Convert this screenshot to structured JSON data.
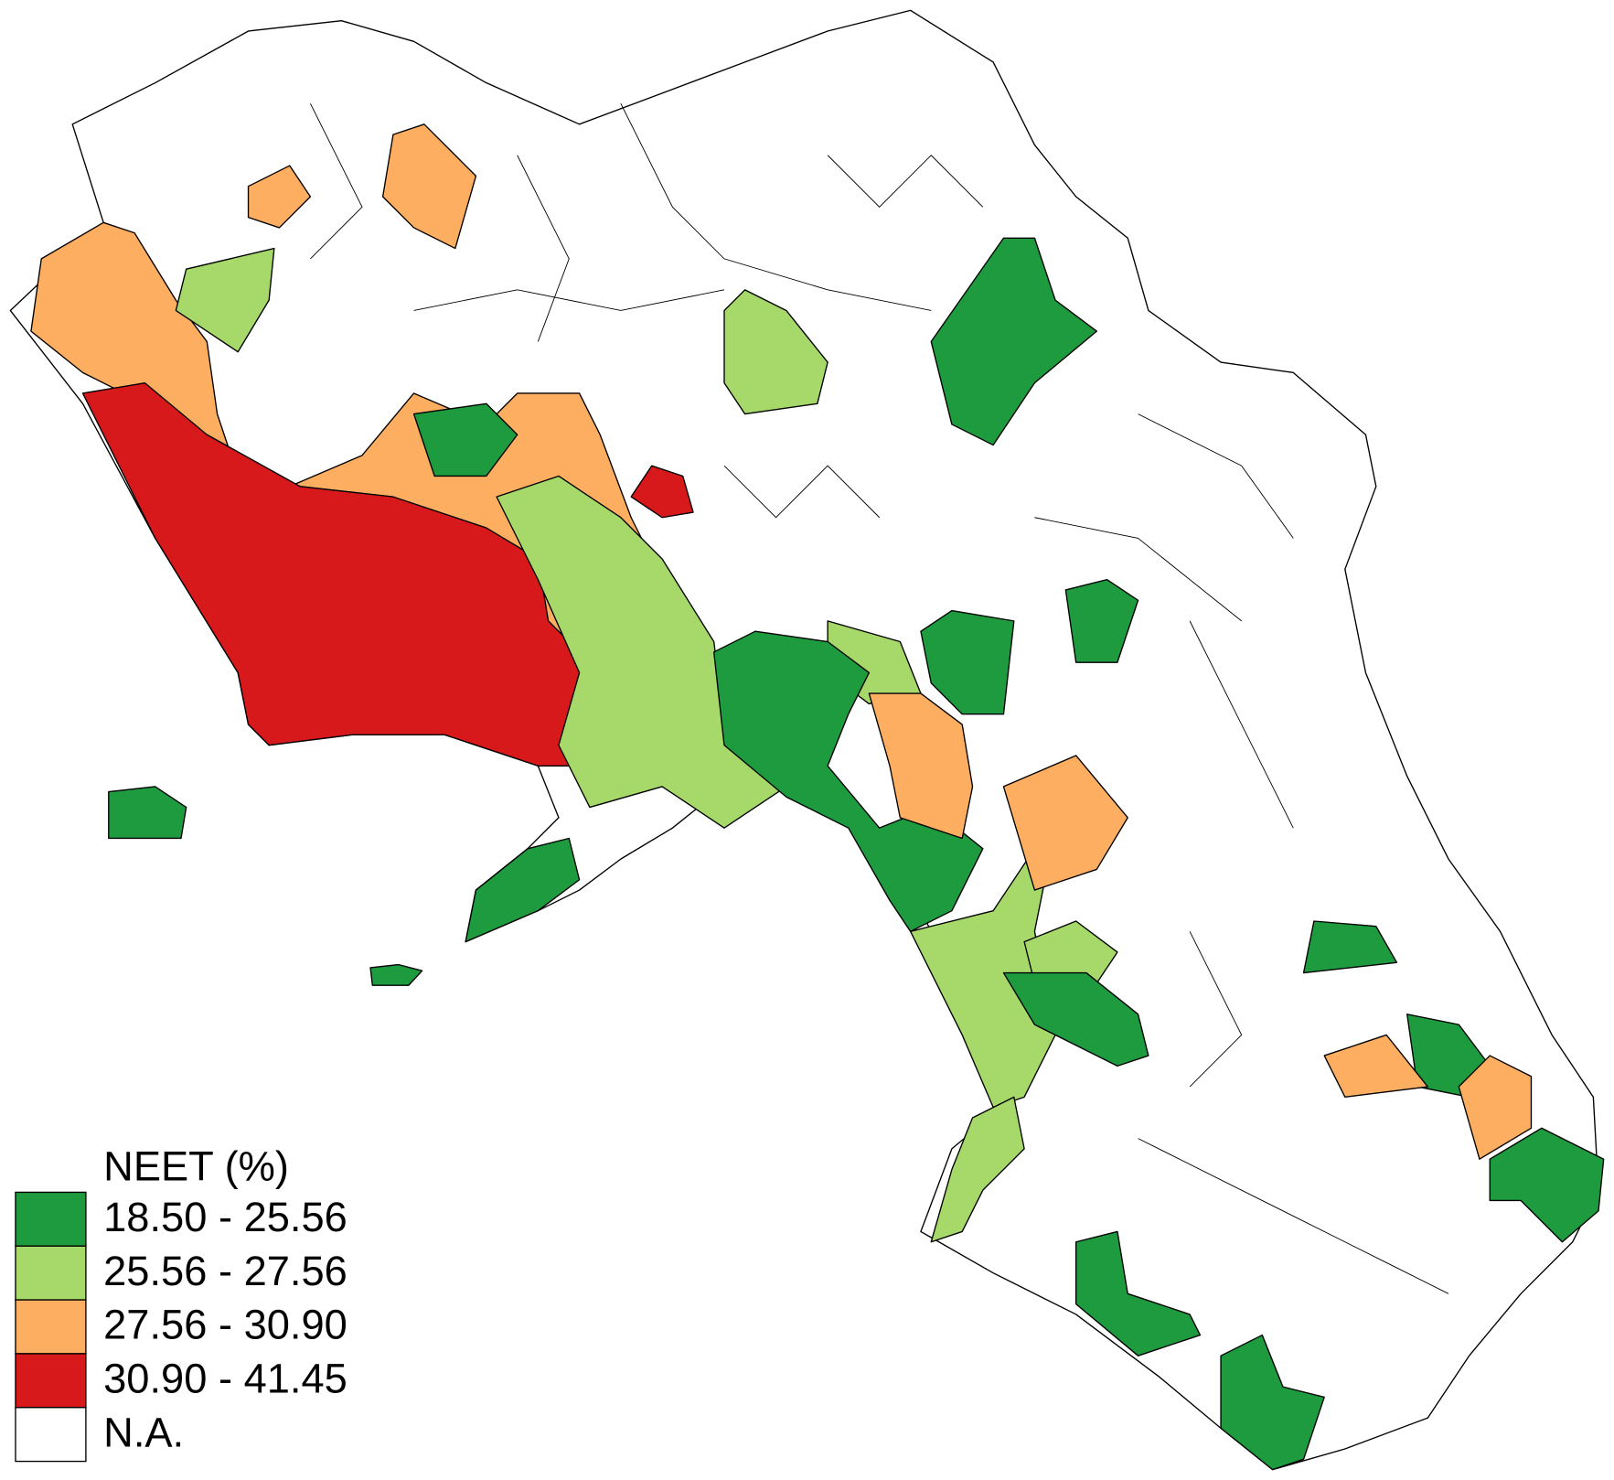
{
  "legend": {
    "title": "NEET (%)",
    "items": [
      {
        "label": "18.50 - 25.56",
        "color": "#1e9a3f"
      },
      {
        "label": "25.56 - 27.56",
        "color": "#a6d96a"
      },
      {
        "label": "27.56 - 30.90",
        "color": "#fdae61"
      },
      {
        "label": "30.90 - 41.45",
        "color": "#d7191c"
      },
      {
        "label": "N.A.",
        "color": "#ffffff"
      }
    ]
  }
}
